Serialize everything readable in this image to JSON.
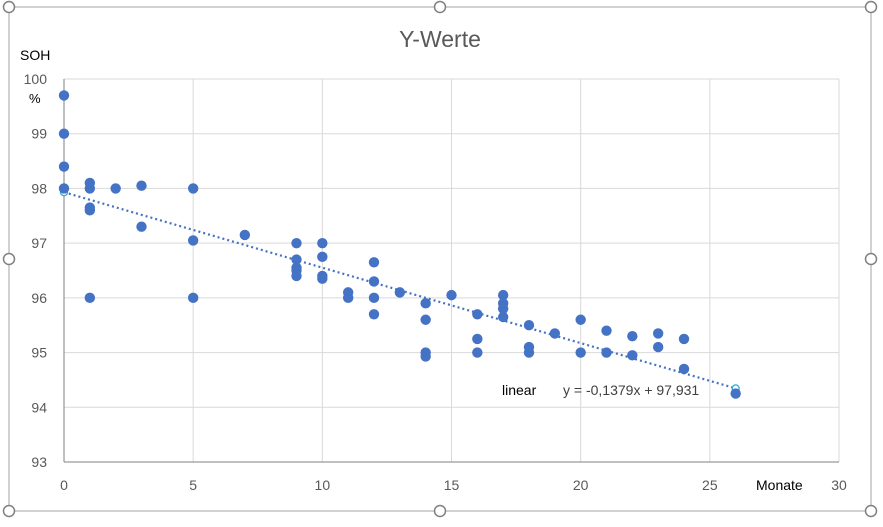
{
  "chart_data": {
    "type": "scatter",
    "title": "Y-Werte",
    "xlabel": "Monate",
    "ylabel": "SOH",
    "ylabel_unit": "%",
    "xlim": [
      0,
      30
    ],
    "ylim": [
      93,
      100
    ],
    "x_ticks": [
      0,
      5,
      10,
      15,
      20,
      25,
      30
    ],
    "y_ticks": [
      93,
      94,
      95,
      96,
      97,
      98,
      99,
      100
    ],
    "grid": true,
    "colors": {
      "points": "#4472c4",
      "trendline": "#4472c4",
      "grid": "#d9d9d9",
      "frame": "#808080",
      "text": "#595959"
    },
    "series": [
      {
        "points": [
          [
            0,
            99.7
          ],
          [
            0,
            99.0
          ],
          [
            0,
            98.4
          ],
          [
            0,
            98.0
          ],
          [
            1,
            98.1
          ],
          [
            1,
            98.0
          ],
          [
            1,
            97.65
          ],
          [
            1,
            97.6
          ],
          [
            1,
            96.0
          ],
          [
            2,
            98.0
          ],
          [
            3,
            98.05
          ],
          [
            3,
            97.3
          ],
          [
            5,
            98.0
          ],
          [
            5,
            97.05
          ],
          [
            5,
            96.0
          ],
          [
            7,
            97.15
          ],
          [
            9,
            97.0
          ],
          [
            9,
            96.7
          ],
          [
            9,
            96.55
          ],
          [
            9,
            96.5
          ],
          [
            9,
            96.4
          ],
          [
            10,
            97.0
          ],
          [
            10,
            96.75
          ],
          [
            10,
            96.4
          ],
          [
            10,
            96.35
          ],
          [
            11,
            96.1
          ],
          [
            11,
            96.0
          ],
          [
            12,
            96.65
          ],
          [
            12,
            96.3
          ],
          [
            12,
            96.0
          ],
          [
            12,
            95.7
          ],
          [
            13,
            96.1
          ],
          [
            14,
            95.9
          ],
          [
            14,
            95.6
          ],
          [
            14,
            95.0
          ],
          [
            14,
            94.93
          ],
          [
            15,
            96.05
          ],
          [
            16,
            95.7
          ],
          [
            16,
            95.25
          ],
          [
            16,
            95.0
          ],
          [
            17,
            96.05
          ],
          [
            17,
            95.9
          ],
          [
            17,
            95.8
          ],
          [
            17,
            95.65
          ],
          [
            18,
            95.5
          ],
          [
            18,
            95.1
          ],
          [
            18,
            95.0
          ],
          [
            19,
            95.35
          ],
          [
            20,
            95.6
          ],
          [
            20,
            95.0
          ],
          [
            21,
            95.4
          ],
          [
            21,
            95.0
          ],
          [
            22,
            95.3
          ],
          [
            22,
            94.95
          ],
          [
            23,
            95.35
          ],
          [
            23,
            95.1
          ],
          [
            24,
            95.25
          ],
          [
            24,
            94.7
          ],
          [
            26,
            94.25
          ]
        ]
      }
    ],
    "trendline": {
      "name": "linear",
      "equation": "y = -0,1379x + 97,931",
      "slope": -0.1379,
      "intercept": 97.931,
      "x_range": [
        0,
        26
      ]
    }
  }
}
